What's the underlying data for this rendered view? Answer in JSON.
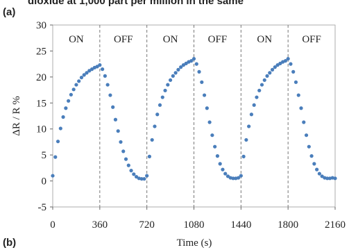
{
  "caption_fragment": "dioxide at 1,000 part per million in the same",
  "panel_label": "(a)",
  "next_panel_label": "(b)",
  "chart_data": {
    "type": "scatter",
    "x_label": "Time (s)",
    "y_label": "ΔR / R %",
    "xlim": [
      0,
      2160
    ],
    "ylim": [
      -5,
      30
    ],
    "xticks": [
      0,
      360,
      720,
      1080,
      1440,
      1800,
      2160
    ],
    "yticks": [
      -5,
      0,
      5,
      10,
      15,
      20,
      25,
      30
    ],
    "annotations": [
      "ON",
      "OFF",
      "ON",
      "OFF",
      "ON",
      "OFF"
    ],
    "color": "#4a7ebb",
    "x": [
      0,
      20,
      40,
      60,
      80,
      100,
      120,
      140,
      160,
      180,
      200,
      220,
      240,
      260,
      280,
      300,
      320,
      340,
      360,
      380,
      400,
      420,
      440,
      460,
      480,
      500,
      520,
      540,
      560,
      580,
      600,
      620,
      640,
      660,
      680,
      700,
      720,
      740,
      760,
      780,
      800,
      820,
      840,
      860,
      880,
      900,
      920,
      940,
      960,
      980,
      1000,
      1020,
      1040,
      1060,
      1080,
      1100,
      1120,
      1140,
      1160,
      1180,
      1200,
      1220,
      1240,
      1260,
      1280,
      1300,
      1320,
      1340,
      1360,
      1380,
      1400,
      1420,
      1440,
      1460,
      1480,
      1500,
      1520,
      1540,
      1560,
      1580,
      1600,
      1620,
      1640,
      1660,
      1680,
      1700,
      1720,
      1740,
      1760,
      1780,
      1800,
      1820,
      1840,
      1860,
      1880,
      1900,
      1920,
      1940,
      1960,
      1980,
      2000,
      2020,
      2040,
      2060,
      2080,
      2100,
      2120,
      2140,
      2160
    ],
    "values": [
      1.0,
      4.6,
      7.6,
      10.1,
      12.3,
      14.0,
      15.4,
      16.6,
      17.6,
      18.5,
      19.2,
      19.9,
      20.4,
      20.8,
      21.2,
      21.5,
      21.8,
      22.0,
      22.3,
      21.5,
      20.2,
      18.5,
      16.5,
      14.2,
      11.8,
      9.6,
      7.5,
      5.7,
      4.2,
      3.0,
      2.0,
      1.3,
      0.8,
      0.5,
      0.4,
      0.4,
      1.0,
      4.7,
      7.9,
      10.5,
      12.8,
      14.6,
      16.1,
      17.4,
      18.5,
      19.4,
      20.2,
      20.8,
      21.4,
      21.9,
      22.3,
      22.6,
      22.9,
      23.1,
      23.5,
      22.5,
      21.0,
      19.0,
      16.5,
      14.0,
      11.3,
      8.8,
      6.6,
      4.8,
      3.3,
      2.2,
      1.4,
      0.9,
      0.6,
      0.5,
      0.5,
      0.6,
      1.0,
      4.7,
      7.9,
      10.5,
      12.8,
      14.6,
      16.1,
      17.4,
      18.5,
      19.4,
      20.2,
      20.8,
      21.4,
      21.9,
      22.3,
      22.6,
      22.9,
      23.1,
      23.5,
      22.5,
      21.0,
      19.0,
      16.5,
      14.0,
      11.3,
      8.8,
      6.6,
      4.8,
      3.3,
      2.2,
      1.4,
      0.9,
      0.6,
      0.5,
      0.5,
      0.6,
      0.5
    ]
  }
}
